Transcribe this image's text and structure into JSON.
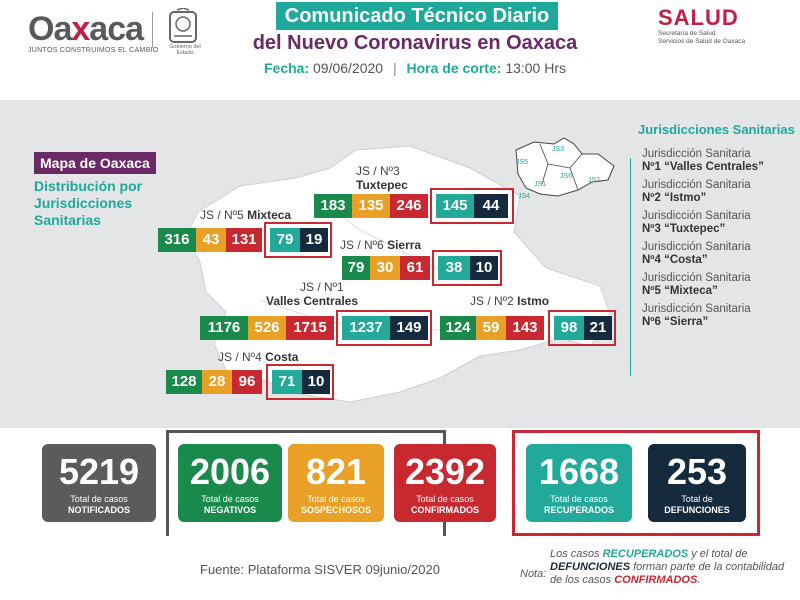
{
  "header": {
    "logo_word_a": "Oa",
    "logo_word_x": "x",
    "logo_word_b": "aca",
    "logo_tagline": "JUNTOS CONSTRUIMOS EL CAMBIO",
    "seal_caption": "Gobierno del Estado",
    "title_line1": "Comunicado Técnico Diario",
    "title_line2": "del Nuevo Coronavirus en Oaxaca",
    "fecha_label": "Fecha:",
    "fecha_value": "09/06/2020",
    "hora_label": "Hora de corte:",
    "hora_value": "13:00 Hrs",
    "salud_word": "SALUD",
    "salud_sub1": "Secretaría de Salud",
    "salud_sub2": "Servicios de Salud de Oaxaca"
  },
  "map": {
    "tag": "Mapa de Oaxaca",
    "subtitle": "Distribución por Jurisdicciones Sanitarias",
    "jurisdictions": [
      {
        "label_pre": "JS / Nº3",
        "label_name": "Tuxtepec",
        "values": [
          "183",
          "135",
          "246",
          "145",
          "44"
        ]
      },
      {
        "label_pre": "JS / Nº5",
        "label_name": "Mixteca",
        "values": [
          "316",
          "43",
          "131",
          "79",
          "19"
        ]
      },
      {
        "label_pre": "JS / Nº6",
        "label_name": "Sierra",
        "values": [
          "79",
          "30",
          "61",
          "38",
          "10"
        ]
      },
      {
        "label_pre": "JS / Nº1",
        "label_name": "Valles Centrales",
        "values": [
          "1176",
          "526",
          "1715",
          "1237",
          "149"
        ]
      },
      {
        "label_pre": "JS / Nº2",
        "label_name": "Istmo",
        "values": [
          "124",
          "59",
          "143",
          "98",
          "21"
        ]
      },
      {
        "label_pre": "JS / Nº4",
        "label_name": "Costa",
        "values": [
          "128",
          "28",
          "96",
          "71",
          "10"
        ]
      }
    ],
    "inset_labels": [
      "JS3",
      "JS5",
      "JS1",
      "JS6",
      "JS2",
      "JS4"
    ]
  },
  "legend": {
    "title": "Jurisdicciones Sanitarias",
    "items": [
      {
        "line1": "Jurisdicción Sanitaria",
        "line2": "Nº1 “Valles Centrales”"
      },
      {
        "line1": "Jurisdicción Sanitaria",
        "line2": "Nº2 “Istmo”"
      },
      {
        "line1": "Jurisdicción Sanitaria",
        "line2": "Nº3 “Tuxtepec”"
      },
      {
        "line1": "Jurisdicción Sanitaria",
        "line2": "Nº4 “Costa”"
      },
      {
        "line1": "Jurisdicción Sanitaria",
        "line2": "Nº5 “Mixteca”"
      },
      {
        "line1": "Jurisdicción Sanitaria",
        "line2": "Nº6 “Sierra”"
      }
    ]
  },
  "totals": [
    {
      "value": "5219",
      "cap1": "Total de casos",
      "cap2": "NOTIFICADOS",
      "color": "#5b5b5e"
    },
    {
      "value": "2006",
      "cap1": "Total de casos",
      "cap2": "NEGATIVOS",
      "color": "#1a8a4c"
    },
    {
      "value": "821",
      "cap1": "Total de casos",
      "cap2": "SOSPECHOSOS",
      "color": "#e8a026"
    },
    {
      "value": "2392",
      "cap1": "Total de casos",
      "cap2": "CONFIRMADOS",
      "color": "#c8282f"
    },
    {
      "value": "1668",
      "cap1": "Total de casos",
      "cap2": "RECUPERADOS",
      "color": "#22a99a"
    },
    {
      "value": "253",
      "cap1": "Total de",
      "cap2": "DEFUNCIONES",
      "color": "#152a3d"
    }
  ],
  "footer": {
    "fuente": "Fuente: Plataforma SISVER 09junio/2020",
    "nota_label": "Nota:",
    "nota_1": "Los casos ",
    "nota_recuperados": "RECUPERADOS",
    "nota_2": " y el total de ",
    "nota_defunciones": "DEFUNCIONES",
    "nota_3": " forman parte de la contabilidad de los casos ",
    "nota_confirmados": "CONFIRMADOS",
    "nota_4": "."
  }
}
